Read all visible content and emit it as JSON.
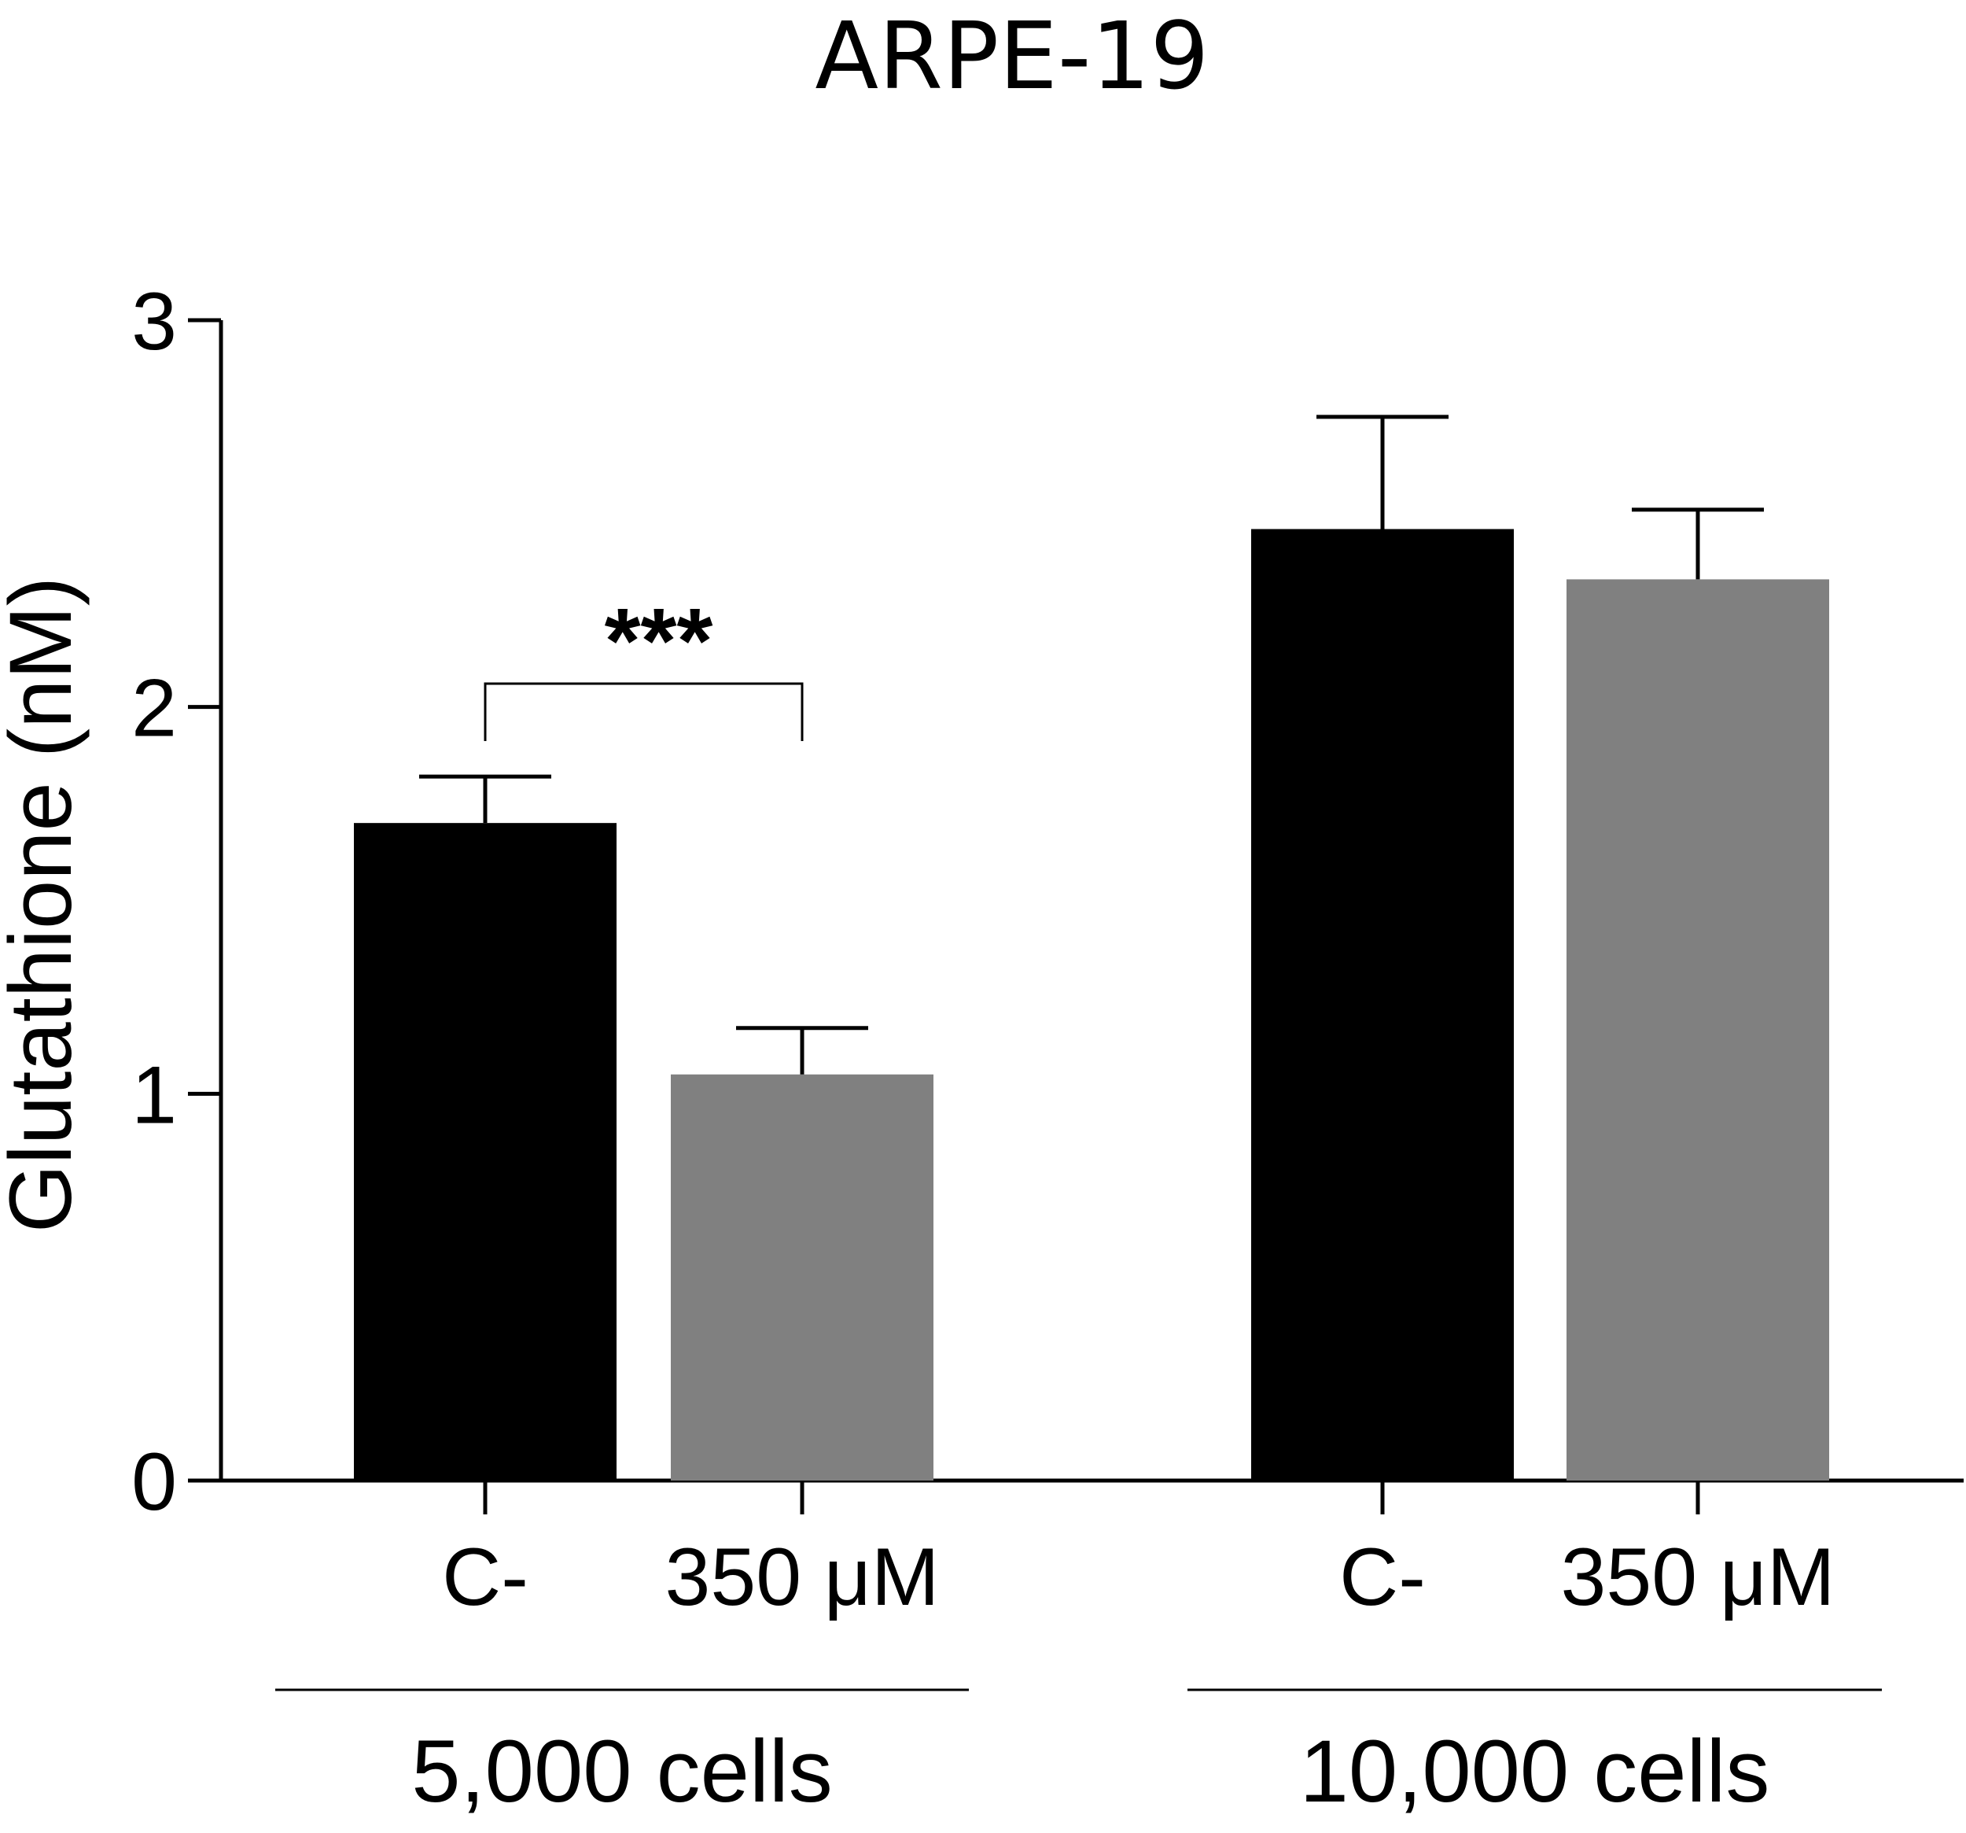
{
  "chart_data": {
    "type": "bar",
    "title": "ARPE-19",
    "ylabel": "Glutathione (nM)",
    "xlabel": "",
    "ylim": [
      0,
      3
    ],
    "yticks": [
      "0",
      "1",
      "2",
      "3"
    ],
    "grid": false,
    "groups": [
      {
        "label": "5,000 cells",
        "bars": [
          {
            "category": "C-",
            "value": 1.7,
            "error": 0.12,
            "color": "#000000"
          },
          {
            "category": "350 μM",
            "value": 1.05,
            "error": 0.12,
            "color": "#808080"
          }
        ],
        "significance": "***"
      },
      {
        "label": "10,000 cells",
        "bars": [
          {
            "category": "C-",
            "value": 2.46,
            "error": 0.29,
            "color": "#000000"
          },
          {
            "category": "350 μM",
            "value": 2.33,
            "error": 0.18,
            "color": "#808080"
          }
        ],
        "significance": ""
      }
    ]
  }
}
